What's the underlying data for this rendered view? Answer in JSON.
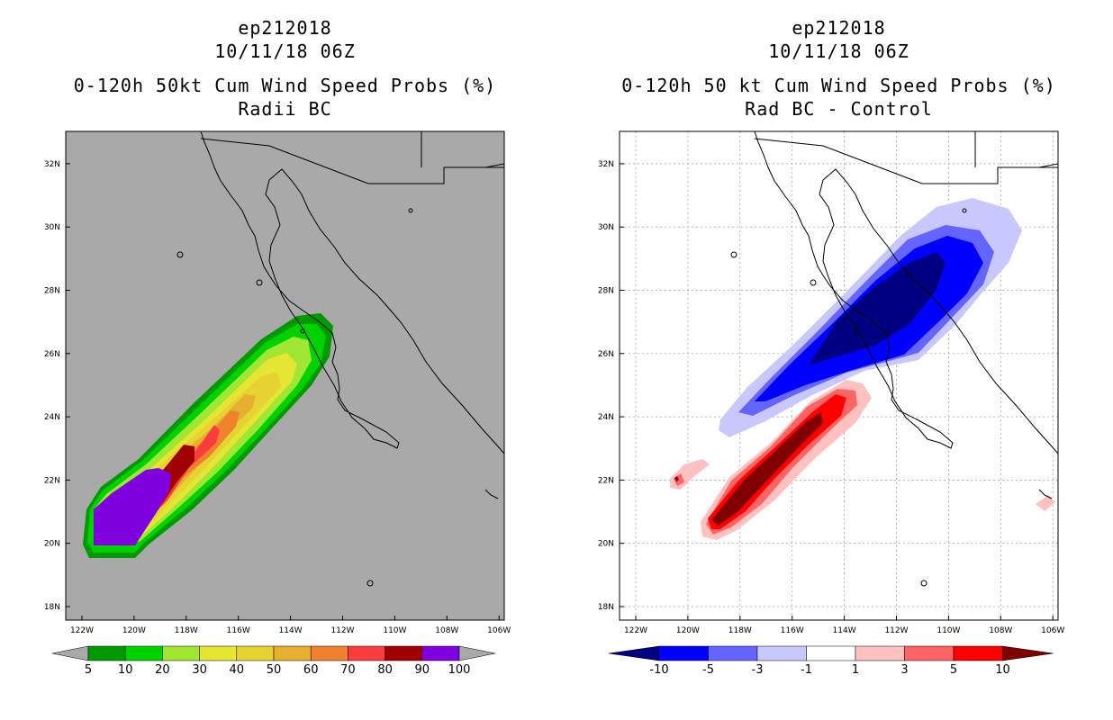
{
  "left": {
    "title_lines": [
      "ep212018",
      "10/11/18 06Z",
      "0-120h 50kt Cum Wind Speed Probs (%)",
      "Radii BC"
    ],
    "map_background": "#a9a9a9",
    "colorbar": {
      "labels": [
        "5",
        "10",
        "20",
        "30",
        "40",
        "50",
        "60",
        "70",
        "80",
        "90",
        "100"
      ],
      "colors": [
        "#a9a9a9",
        "#009a00",
        "#00d200",
        "#a0e632",
        "#e6e632",
        "#e6d232",
        "#e6af2d",
        "#f0822d",
        "#fa3c3c",
        "#a00000",
        "#8000e0",
        "#a9a9a9"
      ]
    }
  },
  "right": {
    "title_lines": [
      "ep212018",
      "10/11/18 06Z",
      "0-120h 50 kt Cum Wind Speed Probs (%)",
      "Rad BC - Control"
    ],
    "map_background": "#ffffff",
    "colorbar": {
      "labels": [
        "-10",
        "-5",
        "-3",
        "-1",
        "1",
        "3",
        "5",
        "10"
      ],
      "colors": [
        "#000080",
        "#0000ff",
        "#6464ff",
        "#c8c8ff",
        "#ffffff",
        "#ffc0c0",
        "#ff6464",
        "#ff0000",
        "#800000"
      ]
    }
  },
  "axes": {
    "lat_labels": [
      "18N",
      "20N",
      "22N",
      "24N",
      "26N",
      "28N",
      "30N",
      "32N"
    ],
    "lon_labels": [
      "122W",
      "120W",
      "118W",
      "116W",
      "114W",
      "112W",
      "110W",
      "108W",
      "106W"
    ]
  }
}
